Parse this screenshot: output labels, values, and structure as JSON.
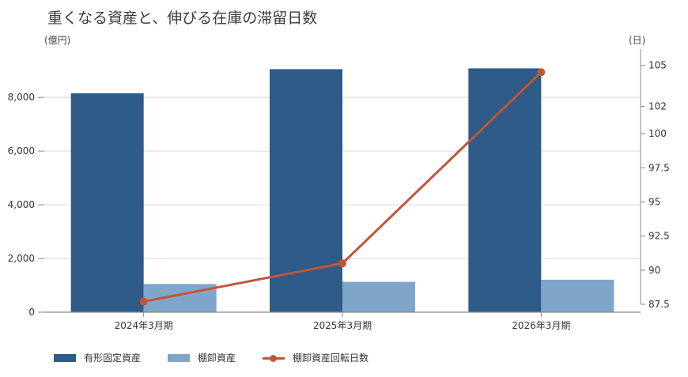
{
  "title": "重くなる資産と、伸びる在庫の滞留日数",
  "units": {
    "left": "(億円)",
    "right": "(日)"
  },
  "colors": {
    "fixed_assets": "#2e5b87",
    "inventory": "#7fa5c9",
    "turnover_days": "#c1553a"
  },
  "chart_data": {
    "type": "bar",
    "categories": [
      "2024年3月期",
      "2025年3月期",
      "2026年3月期"
    ],
    "series": [
      {
        "name": "有形固定資産",
        "type": "bar",
        "axis": "left",
        "values": [
          8150,
          9050,
          9080
        ]
      },
      {
        "name": "棚卸資産",
        "type": "bar",
        "axis": "left",
        "values": [
          1050,
          1130,
          1210
        ]
      },
      {
        "name": "棚卸資産回転日数",
        "type": "line",
        "axis": "right",
        "values": [
          87.7,
          90.5,
          104.5
        ]
      }
    ],
    "y_left": {
      "ticks": [
        "0",
        "2,000",
        "4,000",
        "6,000",
        "8,000"
      ],
      "ylim": [
        0,
        9800
      ]
    },
    "y_right": {
      "ticks": [
        "87.5",
        "90",
        "92.5",
        "95",
        "97.5",
        "100",
        "102",
        "105"
      ],
      "ylim": [
        87.5,
        106.2
      ]
    },
    "grid": true,
    "legend": "bottom-left"
  }
}
